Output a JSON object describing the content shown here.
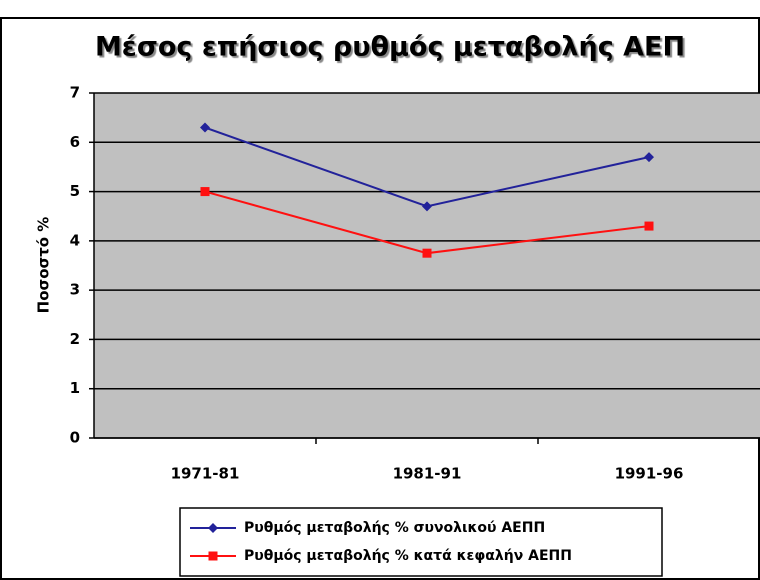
{
  "chart_data": {
    "type": "line",
    "title": "Μέσος επήσιος ρυθμός μεταβολής ΑΕΠ",
    "y_label": "Ποσοστό %",
    "categories": [
      "1971-81",
      "1981-91",
      "1991-96"
    ],
    "series": [
      {
        "name": "Ρυθμός μεταβολής % συνολικού ΑΕΠΠ",
        "color": "#22229a",
        "marker": "diamond",
        "values": [
          6.3,
          4.7,
          5.7
        ]
      },
      {
        "name": "Ρυθμός μεταβολής % κατά κεφαλήν ΑΕΠΠ",
        "color": "#ff1010",
        "marker": "square",
        "values": [
          5.0,
          3.75,
          4.3
        ]
      }
    ],
    "ylim": [
      0,
      7
    ],
    "yticks": [
      0,
      1,
      2,
      3,
      4,
      5,
      6,
      7
    ],
    "grid": true,
    "legend": "bottom"
  }
}
